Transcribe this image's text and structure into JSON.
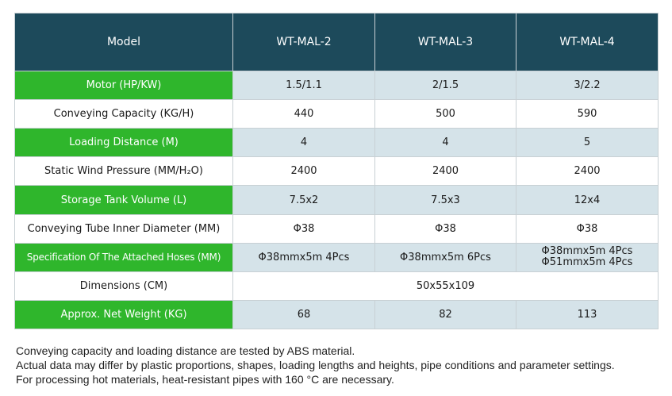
{
  "table": {
    "headers": [
      "Model",
      "WT-MAL-2",
      "WT-MAL-3",
      "WT-MAL-4"
    ],
    "rows": [
      {
        "label": "Motor (HP/KW)",
        "values": [
          "1.5/1.1",
          "2/1.5",
          "3/2.2"
        ]
      },
      {
        "label": "Conveying Capacity (KG/H)",
        "values": [
          "440",
          "500",
          "590"
        ]
      },
      {
        "label": "Loading Distance (M)",
        "values": [
          "4",
          "4",
          "5"
        ]
      },
      {
        "label": "Static Wind Pressure (MM/H₂O)",
        "values": [
          "2400",
          "2400",
          "2400"
        ]
      },
      {
        "label": "Storage Tank Volume (L)",
        "values": [
          "7.5x2",
          "7.5x3",
          "12x4"
        ]
      },
      {
        "label": "Conveying Tube Inner Diameter (MM)",
        "values": [
          "Φ38",
          "Φ38",
          "Φ38"
        ]
      },
      {
        "label": "Specification Of The Attached Hoses (MM)",
        "values": [
          "Φ38mmx5m  4Pcs",
          "Φ38mmx5m  6Pcs",
          [
            "Φ38mmx5m  4Pcs",
            "Φ51mmx5m  4Pcs"
          ]
        ]
      },
      {
        "label": "Dimensions (CM)",
        "values": [
          "50x55x109"
        ]
      },
      {
        "label": "Approx. Net Weight (KG)",
        "values": [
          "68",
          "82",
          "113"
        ]
      }
    ]
  },
  "notes": [
    "Conveying capacity and loading distance are tested by ABS material.",
    "Actual data may differ by plastic proportions, shapes, loading lengths and heights, pipe conditions and parameter settings.",
    "For processing hot materials, heat-resistant pipes with 160 °C are necessary."
  ],
  "colors": {
    "header_bg": "#1d4a5b",
    "label_green": "#2fb62c",
    "value_tint": "#d5e3e9"
  }
}
